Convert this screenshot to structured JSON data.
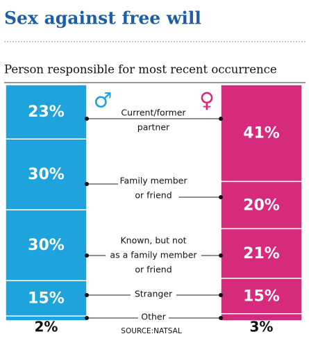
{
  "chart_data": {
    "type": "stacked-bar",
    "title": "Sex against free will",
    "subtitle": "Person responsible for most recent occurrence",
    "source": "SOURCE:NATSAL",
    "categories": [
      [
        "Current/former",
        "partner"
      ],
      [
        "Family member",
        "or friend"
      ],
      [
        "Known, but not",
        "as a family member",
        "or friend"
      ],
      [
        "Stranger"
      ],
      [
        "Other"
      ]
    ],
    "series": [
      {
        "name": "♂",
        "color": "#1fa3dc",
        "values": [
          23,
          30,
          30,
          15,
          2
        ],
        "value_labels": [
          "23%",
          "30%",
          "30%",
          "15%",
          "2%"
        ]
      },
      {
        "name": "♀",
        "color": "#d62a7c",
        "values": [
          41,
          20,
          21,
          15,
          3
        ],
        "value_labels": [
          "41%",
          "20%",
          "21%",
          "15%",
          "3%"
        ]
      }
    ]
  }
}
